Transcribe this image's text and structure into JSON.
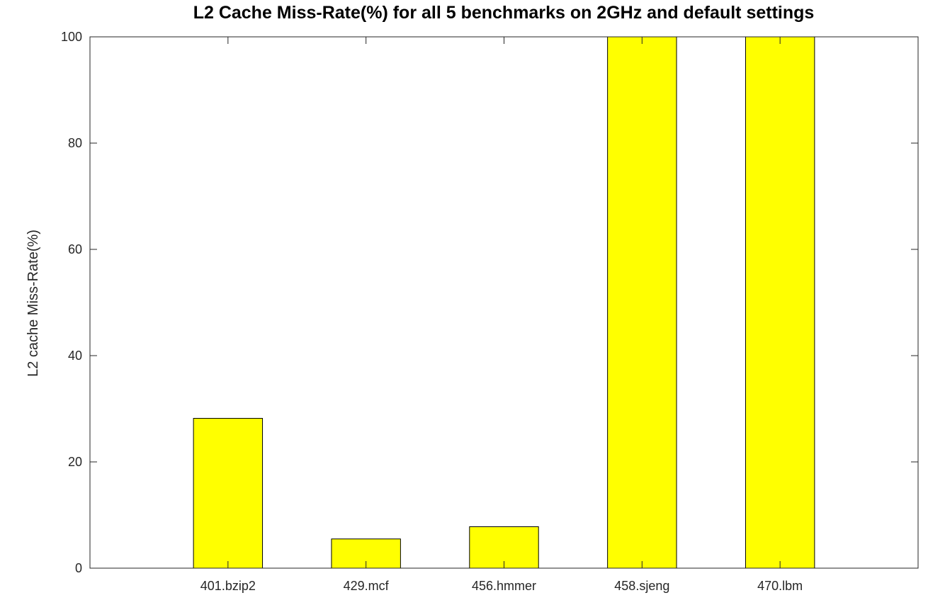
{
  "chart_data": {
    "type": "bar",
    "title": "L2 Cache Miss-Rate(%) for all 5 benchmarks on 2GHz and default settings",
    "xlabel": "",
    "ylabel": "L2 cache Miss-Rate(%)",
    "categories": [
      "401.bzip2",
      "429.mcf",
      "456.hmmer",
      "458.sjeng",
      "470.lbm"
    ],
    "values": [
      28.2,
      5.5,
      7.8,
      100,
      100
    ],
    "ylim": [
      0,
      100
    ],
    "yticks": [
      0,
      20,
      40,
      60,
      80,
      100
    ],
    "xlim": [
      0,
      6
    ],
    "bar_color": "#ffff00",
    "edge_color": "#000000",
    "grid": false,
    "legend": "none"
  }
}
